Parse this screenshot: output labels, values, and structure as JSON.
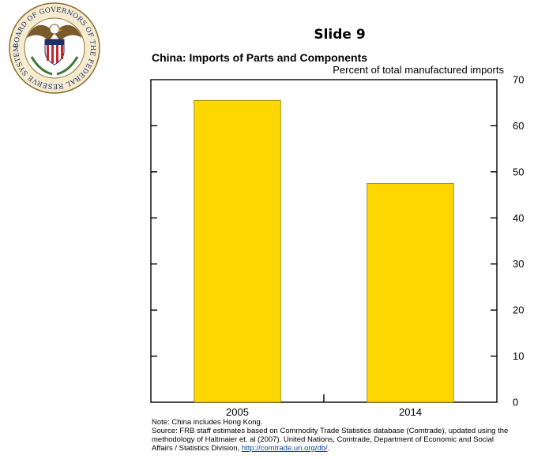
{
  "slide": {
    "label": "Slide 9"
  },
  "seal": {
    "text": "BOARD OF GOVERNORS OF THE FEDERAL RESERVE SYSTEM"
  },
  "chart_data": {
    "type": "bar",
    "title": "China: Imports of Parts and Components",
    "unit_label": "Percent of total manufactured imports",
    "categories": [
      "2005",
      "2014"
    ],
    "values": [
      65.5,
      47.5
    ],
    "ylim": [
      0,
      70
    ],
    "y_ticks": [
      "0",
      "10",
      "20",
      "30",
      "40",
      "50",
      "60",
      "70"
    ],
    "y_axis_side": "right",
    "bar_color": "#FFD700",
    "bar_edge_color": "#8B7500",
    "grid": false,
    "legend": "none"
  },
  "notes": {
    "note": "Note: China includes Hong Kong.",
    "source": "Source: FRB staff estimates based on Commodity Trade Statistics database (Comtrade), updated using the methodology of Haltmaier et. al (2007). United Nations, Comtrade, Department of Economic and Social Affairs / Statistics Division,",
    "link_text": "http://comtrade.un.org/db/",
    "trailing": "."
  }
}
